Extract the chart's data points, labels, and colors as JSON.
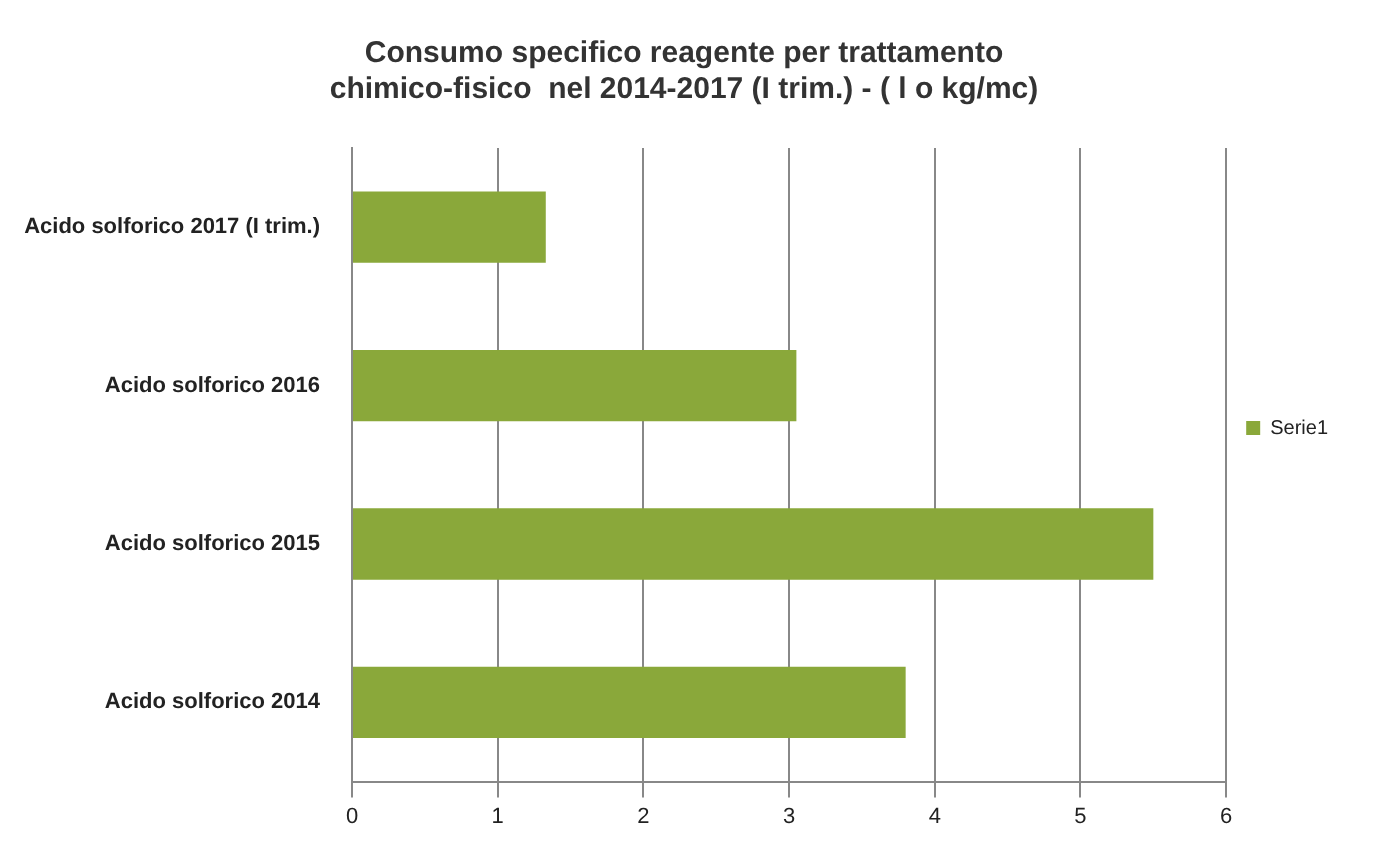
{
  "chart_data": {
    "type": "bar",
    "orientation": "horizontal",
    "title": "Consumo specifico reagente per trattamento\nchimico-fisico  nel 2014-2017 (I trim.) - ( l o kg/mc)",
    "categories": [
      "Acido solforico 2017 (I trim.)",
      "Acido solforico 2016",
      "Acido solforico 2015",
      "Acido solforico 2014"
    ],
    "series": [
      {
        "name": "Serie1",
        "color": "#8aa83a",
        "values": [
          1.33,
          3.05,
          5.5,
          3.8
        ]
      }
    ],
    "xlim": [
      0,
      6
    ],
    "xticks": [
      0,
      1,
      2,
      3,
      4,
      5,
      6
    ],
    "grid": "x",
    "legend": "right"
  }
}
